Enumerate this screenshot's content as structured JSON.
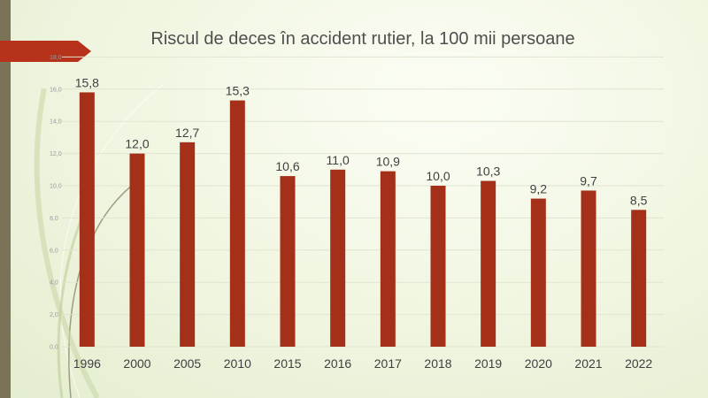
{
  "colors": {
    "bar": "#a5301a",
    "arrow": "#b7321b",
    "left_bar": "#7b7358",
    "grid": "#dfe5d0"
  },
  "chart_data": {
    "type": "bar",
    "title": "Riscul de deces în accident rutier, la 100 mii persoane",
    "xlabel": "",
    "ylabel": "",
    "categories": [
      "1996",
      "2000",
      "2005",
      "2010",
      "2015",
      "2016",
      "2017",
      "2018",
      "2019",
      "2020",
      "2021",
      "2022"
    ],
    "values": [
      15.8,
      12.0,
      12.7,
      15.3,
      10.6,
      11.0,
      10.9,
      10.0,
      10.3,
      9.2,
      9.7,
      8.5
    ],
    "value_labels": [
      "15,8",
      "12,0",
      "12,7",
      "15,3",
      "10,6",
      "11,0",
      "10,9",
      "10,0",
      "10,3",
      "9,2",
      "9,7",
      "8,5"
    ],
    "ylim": [
      0,
      18
    ],
    "y_ticks": [
      0,
      2,
      4,
      6,
      8,
      10,
      12,
      14,
      16,
      18
    ],
    "y_tick_labels": [
      "0,0",
      "2,0",
      "4,0",
      "6,0",
      "8,0",
      "10,0",
      "12,0",
      "14,0",
      "16,0",
      "18,0"
    ],
    "grid": true,
    "legend": "none"
  }
}
